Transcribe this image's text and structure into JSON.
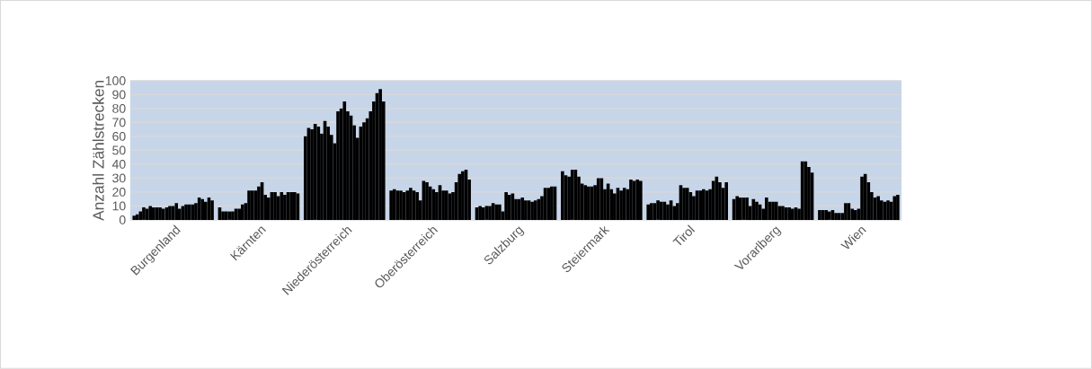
{
  "chart_data": {
    "type": "bar",
    "ylabel": "Anzahl Zählstrecken",
    "categories": [
      "Burgenland",
      "Kärnten",
      "Niederösterreich",
      "Oberösterreich",
      "Salzburg",
      "Steiermark",
      "Tirol",
      "Vorarlberg",
      "Wien"
    ],
    "ylim": [
      0,
      100
    ],
    "yticks": [
      0,
      10,
      20,
      30,
      40,
      50,
      60,
      70,
      80,
      90,
      100
    ],
    "grid": "y",
    "legend": false,
    "series": [
      {
        "color": "#000000",
        "values": [
          3,
          9,
          60,
          21,
          9,
          35,
          11,
          15,
          7
        ]
      },
      {
        "color": "#000000",
        "values": [
          4,
          6,
          66,
          22,
          10,
          32,
          12,
          17,
          7
        ]
      },
      {
        "color": "#000000",
        "values": [
          6,
          6,
          65,
          21,
          9,
          31,
          12,
          16,
          7
        ]
      },
      {
        "color": "#000000",
        "values": [
          9,
          6,
          69,
          21,
          10,
          36,
          14,
          16,
          6
        ]
      },
      {
        "color": "#000000",
        "values": [
          8,
          6,
          67,
          20,
          10,
          36,
          13,
          16,
          7
        ]
      },
      {
        "color": "#000000",
        "values": [
          10,
          8,
          62,
          21,
          12,
          31,
          13,
          10,
          5
        ]
      },
      {
        "color": "#000000",
        "values": [
          9,
          8,
          71,
          23,
          11,
          26,
          11,
          15,
          5
        ]
      },
      {
        "color": "#000000",
        "values": [
          9,
          11,
          67,
          21,
          11,
          25,
          14,
          13,
          5
        ]
      },
      {
        "color": "#000000",
        "values": [
          9,
          12,
          61,
          20,
          6,
          24,
          10,
          11,
          12
        ]
      },
      {
        "color": "#000000",
        "values": [
          8,
          21,
          55,
          14,
          20,
          24,
          12,
          8,
          12
        ]
      },
      {
        "color": "#000000",
        "values": [
          9,
          21,
          78,
          28,
          18,
          25,
          25,
          16,
          8
        ]
      },
      {
        "color": "#000000",
        "values": [
          10,
          21,
          80,
          27,
          19,
          30,
          23,
          13,
          7
        ]
      },
      {
        "color": "#000000",
        "values": [
          10,
          24,
          85,
          24,
          15,
          30,
          23,
          13,
          8
        ]
      },
      {
        "color": "#000000",
        "values": [
          12,
          27,
          78,
          22,
          15,
          22,
          20,
          13,
          31
        ]
      },
      {
        "color": "#000000",
        "values": [
          8,
          18,
          75,
          20,
          16,
          26,
          17,
          10,
          33
        ]
      },
      {
        "color": "#000000",
        "values": [
          10,
          16,
          68,
          25,
          14,
          22,
          21,
          10,
          27
        ]
      },
      {
        "color": "#000000",
        "values": [
          11,
          20,
          59,
          21,
          14,
          19,
          21,
          9,
          20
        ]
      },
      {
        "color": "#000000",
        "values": [
          11,
          20,
          67,
          21,
          13,
          23,
          22,
          9,
          16
        ]
      },
      {
        "color": "#000000",
        "values": [
          11,
          17,
          70,
          19,
          14,
          21,
          21,
          8,
          17
        ]
      },
      {
        "color": "#000000",
        "values": [
          12,
          20,
          73,
          20,
          15,
          23,
          22,
          9,
          14
        ]
      },
      {
        "color": "#000000",
        "values": [
          16,
          18,
          78,
          27,
          17,
          22,
          28,
          8,
          13
        ]
      },
      {
        "color": "#000000",
        "values": [
          15,
          20,
          85,
          33,
          23,
          29,
          31,
          42,
          14
        ]
      },
      {
        "color": "#000000",
        "values": [
          13,
          20,
          91,
          35,
          23,
          28,
          27,
          42,
          13
        ]
      },
      {
        "color": "#000000",
        "values": [
          16,
          20,
          94,
          36,
          24,
          29,
          23,
          38,
          17
        ]
      },
      {
        "color": "#000000",
        "values": [
          14,
          19,
          85,
          29,
          24,
          28,
          27,
          34,
          18
        ]
      }
    ]
  }
}
